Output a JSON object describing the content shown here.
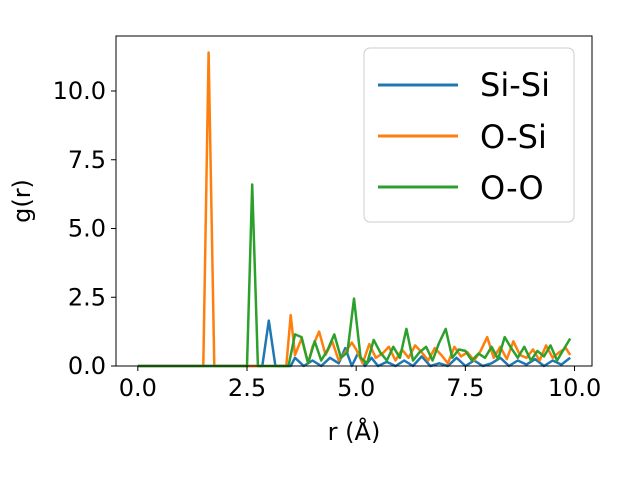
{
  "chart_data": {
    "type": "line",
    "xlabel": "r (Å)",
    "ylabel": "g(r)",
    "xlim": [
      -0.5,
      10.4
    ],
    "ylim": [
      0,
      12.0
    ],
    "xticks": [
      0.0,
      2.5,
      5.0,
      7.5,
      10.0
    ],
    "xtick_labels": [
      "0.0",
      "2.5",
      "5.0",
      "7.5",
      "10.0"
    ],
    "yticks": [
      0.0,
      2.5,
      5.0,
      7.5,
      10.0
    ],
    "ytick_labels": [
      "0.0",
      "2.5",
      "5.0",
      "7.5",
      "10.0"
    ],
    "grid": false,
    "legend_position": "top-right",
    "series": [
      {
        "name": "Si-Si",
        "color": "#1f77b4",
        "x": [
          0.0,
          2.85,
          3.0,
          3.15,
          3.5,
          3.6,
          3.8,
          4.0,
          4.2,
          4.4,
          4.6,
          4.75,
          4.9,
          5.05,
          5.2,
          5.35,
          5.5,
          5.7,
          5.9,
          6.1,
          6.3,
          6.5,
          6.7,
          6.9,
          7.1,
          7.3,
          7.5,
          7.7,
          7.9,
          8.1,
          8.3,
          8.5,
          8.7,
          8.9,
          9.1,
          9.3,
          9.5,
          9.7,
          9.9
        ],
        "y": [
          0.0,
          0.0,
          1.65,
          0.0,
          0.0,
          0.3,
          0.0,
          0.2,
          0.0,
          0.3,
          0.1,
          0.65,
          0.0,
          0.5,
          0.0,
          0.3,
          0.0,
          0.15,
          0.0,
          0.2,
          0.0,
          0.35,
          0.0,
          0.1,
          0.0,
          0.3,
          0.0,
          0.2,
          0.0,
          0.1,
          0.3,
          0.0,
          0.2,
          0.05,
          0.25,
          0.0,
          0.2,
          0.05,
          0.3
        ]
      },
      {
        "name": "O-Si",
        "color": "#ff7f0e",
        "x": [
          0.0,
          1.5,
          1.62,
          1.75,
          3.4,
          3.5,
          3.6,
          3.75,
          3.9,
          4.0,
          4.15,
          4.3,
          4.45,
          4.6,
          4.75,
          4.9,
          5.0,
          5.15,
          5.3,
          5.45,
          5.6,
          5.75,
          5.9,
          6.05,
          6.2,
          6.35,
          6.5,
          6.65,
          6.8,
          6.95,
          7.1,
          7.25,
          7.4,
          7.55,
          7.7,
          7.85,
          8.0,
          8.15,
          8.3,
          8.45,
          8.6,
          8.75,
          8.9,
          9.05,
          9.2,
          9.35,
          9.5,
          9.65,
          9.8,
          9.9
        ],
        "y": [
          0.0,
          0.0,
          11.4,
          0.0,
          0.0,
          1.85,
          0.4,
          1.0,
          0.1,
          0.7,
          1.25,
          0.4,
          0.9,
          0.2,
          0.5,
          0.85,
          0.6,
          0.1,
          0.8,
          0.3,
          0.45,
          0.7,
          0.2,
          0.6,
          0.3,
          0.75,
          0.5,
          0.2,
          0.65,
          0.4,
          0.1,
          0.7,
          0.35,
          0.5,
          0.2,
          0.55,
          1.05,
          0.3,
          0.7,
          0.25,
          0.9,
          0.4,
          0.3,
          0.6,
          0.2,
          0.75,
          0.3,
          0.5,
          0.65,
          0.4
        ]
      },
      {
        "name": "O-O",
        "color": "#2ca02c",
        "x": [
          0.0,
          2.5,
          2.62,
          2.75,
          3.45,
          3.6,
          3.75,
          3.9,
          4.05,
          4.2,
          4.35,
          4.5,
          4.65,
          4.8,
          4.95,
          5.1,
          5.25,
          5.4,
          5.55,
          5.7,
          5.85,
          6.0,
          6.15,
          6.3,
          6.45,
          6.6,
          6.75,
          6.9,
          7.05,
          7.2,
          7.35,
          7.5,
          7.65,
          7.8,
          7.95,
          8.1,
          8.25,
          8.4,
          8.55,
          8.7,
          8.85,
          9.0,
          9.15,
          9.3,
          9.45,
          9.6,
          9.75,
          9.9
        ],
        "y": [
          0.0,
          0.0,
          6.6,
          0.0,
          0.0,
          1.15,
          1.05,
          0.1,
          0.9,
          0.2,
          0.6,
          1.15,
          0.3,
          0.5,
          2.45,
          0.3,
          0.1,
          0.95,
          0.5,
          0.2,
          0.7,
          0.3,
          1.35,
          0.2,
          0.5,
          0.7,
          0.2,
          0.85,
          1.35,
          0.3,
          0.6,
          0.55,
          0.2,
          0.45,
          0.3,
          0.7,
          0.25,
          1.05,
          0.65,
          0.3,
          0.7,
          0.2,
          0.55,
          0.35,
          0.75,
          0.2,
          0.6,
          1.0
        ]
      }
    ]
  }
}
